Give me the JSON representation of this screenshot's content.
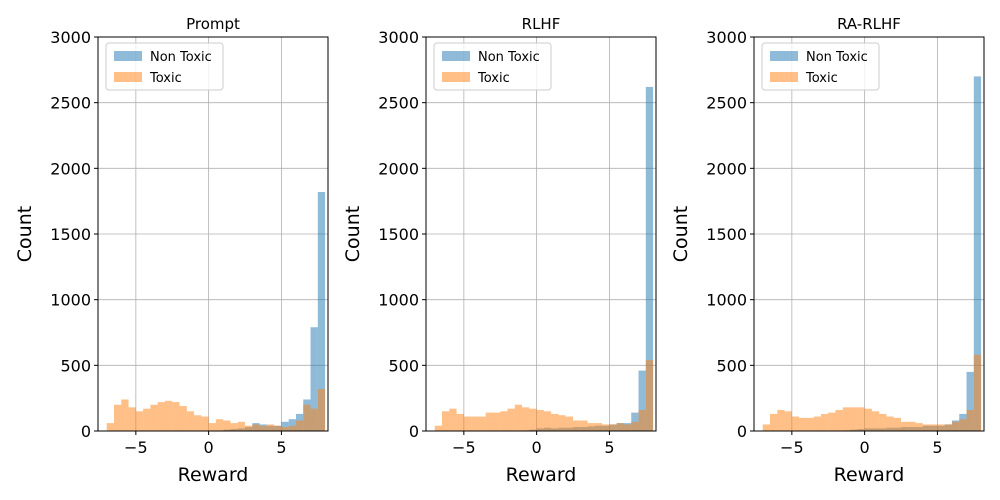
{
  "colors": {
    "non_toxic": "#1f77b4",
    "toxic": "#ff7f0e",
    "grid": "#b0b0b0"
  },
  "chart_data": [
    {
      "type": "bar",
      "title": "Prompt",
      "xlabel": "Reward",
      "ylabel": "Count",
      "xlim": [
        -7.6,
        8.2
      ],
      "ylim": [
        0,
        3000
      ],
      "xticks": [
        -5,
        0,
        5
      ],
      "yticks": [
        0,
        500,
        1000,
        1500,
        2000,
        2500,
        3000
      ],
      "grid": true,
      "legend_position": "top-left",
      "series": [
        {
          "name": "Non Toxic",
          "bins": [
            [
              -6.5,
              0
            ],
            [
              -6.0,
              0
            ],
            [
              -5.5,
              0
            ],
            [
              -5.0,
              0
            ],
            [
              -4.5,
              0
            ],
            [
              -4.0,
              0
            ],
            [
              -3.5,
              0
            ],
            [
              -3.0,
              0
            ],
            [
              -2.5,
              0
            ],
            [
              -2.0,
              0
            ],
            [
              -1.5,
              0
            ],
            [
              -1.0,
              0
            ],
            [
              -0.5,
              0
            ],
            [
              0.0,
              0
            ],
            [
              0.5,
              0
            ],
            [
              1.0,
              10
            ],
            [
              1.5,
              15
            ],
            [
              2.0,
              20
            ],
            [
              2.5,
              30
            ],
            [
              3.0,
              60
            ],
            [
              3.5,
              50
            ],
            [
              4.0,
              40
            ],
            [
              4.5,
              40
            ],
            [
              5.0,
              70
            ],
            [
              5.5,
              90
            ],
            [
              6.0,
              130
            ],
            [
              6.5,
              240
            ],
            [
              7.0,
              790
            ],
            [
              7.5,
              1820
            ]
          ]
        },
        {
          "name": "Toxic",
          "bins": [
            [
              -7.0,
              60
            ],
            [
              -6.5,
              200
            ],
            [
              -6.0,
              240
            ],
            [
              -5.5,
              180
            ],
            [
              -5.0,
              150
            ],
            [
              -4.5,
              170
            ],
            [
              -4.0,
              200
            ],
            [
              -3.5,
              220
            ],
            [
              -3.0,
              230
            ],
            [
              -2.5,
              220
            ],
            [
              -2.0,
              190
            ],
            [
              -1.5,
              150
            ],
            [
              -1.0,
              120
            ],
            [
              -0.5,
              110
            ],
            [
              0.0,
              60
            ],
            [
              0.5,
              90
            ],
            [
              1.0,
              80
            ],
            [
              1.5,
              60
            ],
            [
              2.0,
              70
            ],
            [
              2.5,
              40
            ],
            [
              3.0,
              50
            ],
            [
              3.5,
              40
            ],
            [
              4.0,
              50
            ],
            [
              4.5,
              40
            ],
            [
              5.0,
              30
            ],
            [
              5.5,
              40
            ],
            [
              6.0,
              80
            ],
            [
              6.5,
              200
            ],
            [
              7.0,
              170
            ],
            [
              7.5,
              320
            ]
          ]
        }
      ]
    },
    {
      "type": "bar",
      "title": "RLHF",
      "xlabel": "Reward",
      "ylabel": "Count",
      "xlim": [
        -7.6,
        8.2
      ],
      "ylim": [
        0,
        3000
      ],
      "xticks": [
        -5,
        0,
        5
      ],
      "yticks": [
        0,
        500,
        1000,
        1500,
        2000,
        2500,
        3000
      ],
      "grid": true,
      "legend_position": "top-left",
      "series": [
        {
          "name": "Non Toxic",
          "bins": [
            [
              -1.0,
              5
            ],
            [
              -0.5,
              10
            ],
            [
              0.0,
              20
            ],
            [
              0.5,
              25
            ],
            [
              1.0,
              20
            ],
            [
              1.5,
              25
            ],
            [
              2.0,
              25
            ],
            [
              2.5,
              30
            ],
            [
              3.0,
              30
            ],
            [
              3.5,
              35
            ],
            [
              4.0,
              40
            ],
            [
              4.5,
              40
            ],
            [
              5.0,
              50
            ],
            [
              5.5,
              60
            ],
            [
              6.0,
              60
            ],
            [
              6.5,
              140
            ],
            [
              7.0,
              460
            ],
            [
              7.5,
              2620
            ]
          ]
        },
        {
          "name": "Toxic",
          "bins": [
            [
              -7.0,
              40
            ],
            [
              -6.5,
              150
            ],
            [
              -6.0,
              170
            ],
            [
              -5.5,
              130
            ],
            [
              -5.0,
              110
            ],
            [
              -4.5,
              110
            ],
            [
              -4.0,
              110
            ],
            [
              -3.5,
              140
            ],
            [
              -3.0,
              140
            ],
            [
              -2.5,
              150
            ],
            [
              -2.0,
              170
            ],
            [
              -1.5,
              200
            ],
            [
              -1.0,
              180
            ],
            [
              -0.5,
              170
            ],
            [
              0.0,
              160
            ],
            [
              0.5,
              150
            ],
            [
              1.0,
              130
            ],
            [
              1.5,
              120
            ],
            [
              2.0,
              110
            ],
            [
              2.5,
              80
            ],
            [
              3.0,
              80
            ],
            [
              3.5,
              60
            ],
            [
              4.0,
              60
            ],
            [
              4.5,
              50
            ],
            [
              5.0,
              50
            ],
            [
              5.5,
              60
            ],
            [
              6.0,
              50
            ],
            [
              6.5,
              70
            ],
            [
              7.0,
              160
            ],
            [
              7.5,
              540
            ]
          ]
        }
      ]
    },
    {
      "type": "bar",
      "title": "RA-RLHF",
      "xlabel": "Reward",
      "ylabel": "Count",
      "xlim": [
        -7.6,
        8.2
      ],
      "ylim": [
        0,
        3000
      ],
      "xticks": [
        -5,
        0,
        5
      ],
      "yticks": [
        0,
        500,
        1000,
        1500,
        2000,
        2500,
        3000
      ],
      "grid": true,
      "legend_position": "top-left",
      "series": [
        {
          "name": "Non Toxic",
          "bins": [
            [
              -1.5,
              5
            ],
            [
              -1.0,
              10
            ],
            [
              -0.5,
              15
            ],
            [
              0.0,
              20
            ],
            [
              0.5,
              20
            ],
            [
              1.0,
              20
            ],
            [
              1.5,
              25
            ],
            [
              2.0,
              25
            ],
            [
              2.5,
              30
            ],
            [
              3.0,
              30
            ],
            [
              3.5,
              30
            ],
            [
              4.0,
              40
            ],
            [
              4.5,
              40
            ],
            [
              5.0,
              40
            ],
            [
              5.5,
              50
            ],
            [
              6.0,
              80
            ],
            [
              6.5,
              130
            ],
            [
              7.0,
              450
            ],
            [
              7.5,
              2700
            ]
          ]
        },
        {
          "name": "Toxic",
          "bins": [
            [
              -7.0,
              50
            ],
            [
              -6.5,
              130
            ],
            [
              -6.0,
              160
            ],
            [
              -5.5,
              150
            ],
            [
              -5.0,
              110
            ],
            [
              -4.5,
              100
            ],
            [
              -4.0,
              100
            ],
            [
              -3.5,
              110
            ],
            [
              -3.0,
              130
            ],
            [
              -2.5,
              140
            ],
            [
              -2.0,
              160
            ],
            [
              -1.5,
              180
            ],
            [
              -1.0,
              180
            ],
            [
              -0.5,
              180
            ],
            [
              0.0,
              170
            ],
            [
              0.5,
              150
            ],
            [
              1.0,
              130
            ],
            [
              1.5,
              110
            ],
            [
              2.0,
              100
            ],
            [
              2.5,
              70
            ],
            [
              3.0,
              70
            ],
            [
              3.5,
              60
            ],
            [
              4.0,
              50
            ],
            [
              4.5,
              50
            ],
            [
              5.0,
              50
            ],
            [
              5.5,
              50
            ],
            [
              6.0,
              70
            ],
            [
              6.5,
              90
            ],
            [
              7.0,
              160
            ],
            [
              7.5,
              580
            ]
          ]
        }
      ]
    }
  ]
}
